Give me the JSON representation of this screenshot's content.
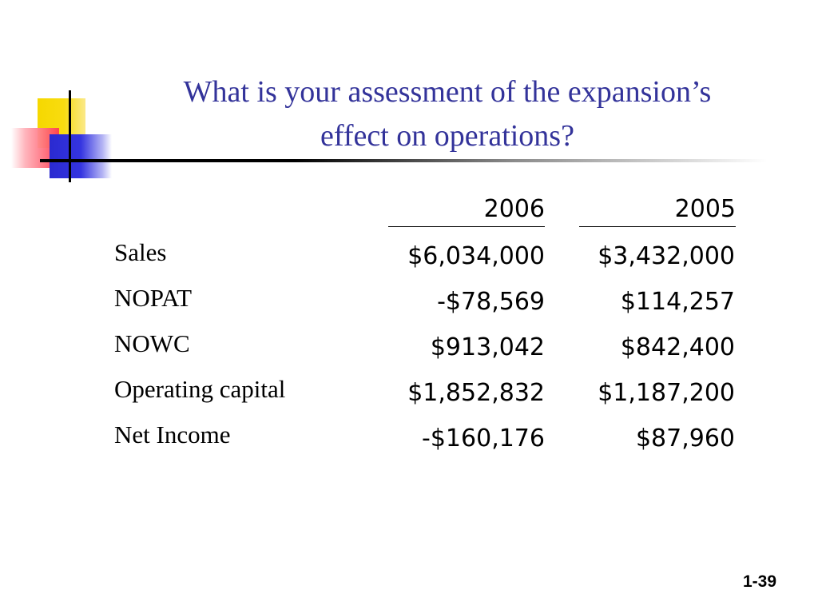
{
  "slide": {
    "title_line1": "What is your assessment of the expansion’s",
    "title_line2": "effect on operations?",
    "page_number": "1-39"
  },
  "colors": {
    "title": "#33339a",
    "logo_yellow": "#f6d800",
    "logo_red": "#ff3c50",
    "logo_blue": "#2a2ad0"
  },
  "table": {
    "columns": [
      "2006",
      "2005"
    ],
    "rows": [
      {
        "label": "Sales",
        "values": [
          "$6,034,000",
          "$3,432,000"
        ]
      },
      {
        "label": "NOPAT",
        "values": [
          "-$78,569",
          "$114,257"
        ]
      },
      {
        "label": "NOWC",
        "values": [
          "$913,042",
          "$842,400"
        ]
      },
      {
        "label": "Operating capital",
        "values": [
          "$1,852,832",
          "$1,187,200"
        ]
      },
      {
        "label": "Net Income",
        "values": [
          "-$160,176",
          "$87,960"
        ]
      }
    ]
  }
}
